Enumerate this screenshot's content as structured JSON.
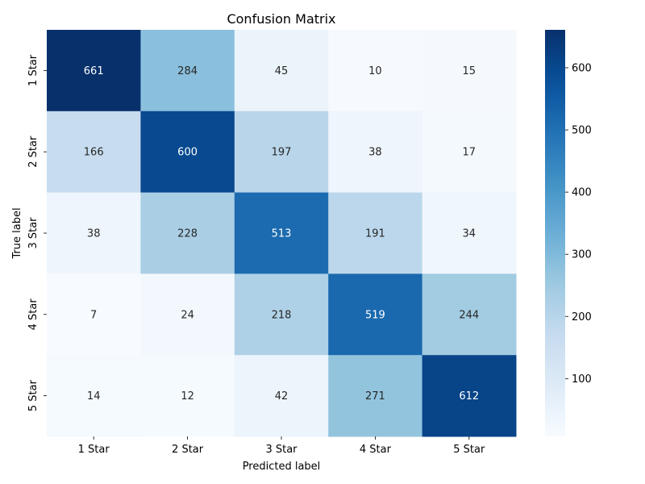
{
  "chart_data": {
    "type": "heatmap",
    "title": "Confusion Matrix",
    "xlabel": "Predicted label",
    "ylabel": "True label",
    "x_categories": [
      "1 Star",
      "2 Star",
      "3 Star",
      "4 Star",
      "5 Star"
    ],
    "y_categories": [
      "1 Star",
      "2 Star",
      "3 Star",
      "4 Star",
      "5 Star"
    ],
    "values": [
      [
        661,
        284,
        45,
        10,
        15
      ],
      [
        166,
        600,
        197,
        38,
        17
      ],
      [
        38,
        228,
        513,
        191,
        34
      ],
      [
        7,
        24,
        218,
        519,
        244
      ],
      [
        14,
        12,
        42,
        271,
        612
      ]
    ],
    "colormap": "Blues",
    "colorbar": {
      "ticks": [
        100,
        200,
        300,
        400,
        500,
        600
      ],
      "range": [
        7,
        661
      ]
    }
  }
}
